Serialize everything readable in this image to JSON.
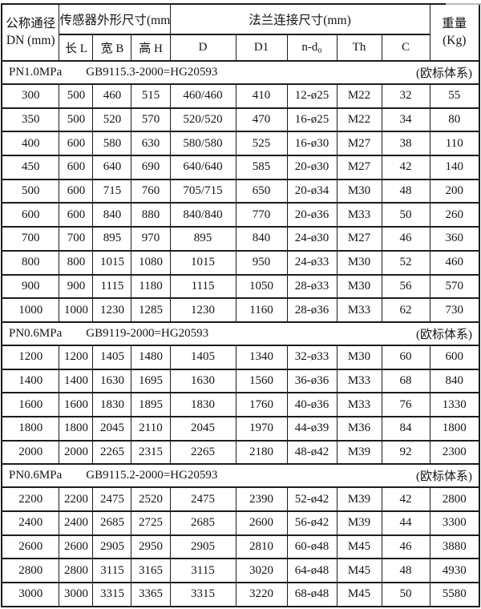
{
  "table": {
    "header": {
      "dn_line1": "公称通径",
      "dn_line2": "DN (mm)",
      "sensor_group": "传感器外形尺寸(mm)",
      "sensor_cols": [
        "长 L",
        "宽 B",
        "高 H"
      ],
      "flange_group": "法兰连接尺寸(mm)",
      "flange_cols": [
        "D",
        "D1",
        "n-d₀",
        "Th",
        "C"
      ],
      "weight_line1": "重量",
      "weight_line2": "(Kg)"
    },
    "sections": [
      {
        "pressure": "PN1.0MPa",
        "standard": "GB9115.3-2000=HG20593",
        "note": "(欧标体系)",
        "rows": [
          [
            "300",
            "500",
            "460",
            "515",
            "460/460",
            "410",
            "12-ø25",
            "M22",
            "32",
            "55"
          ],
          [
            "350",
            "500",
            "520",
            "570",
            "520/520",
            "470",
            "16-ø25",
            "M22",
            "34",
            "80"
          ],
          [
            "400",
            "600",
            "580",
            "630",
            "580/580",
            "525",
            "16-ø30",
            "M27",
            "38",
            "110"
          ],
          [
            "450",
            "600",
            "640",
            "690",
            "640/640",
            "585",
            "20-ø30",
            "M27",
            "42",
            "140"
          ],
          [
            "500",
            "600",
            "715",
            "760",
            "705/715",
            "650",
            "20-ø34",
            "M30",
            "48",
            "200"
          ],
          [
            "600",
            "600",
            "840",
            "880",
            "840/840",
            "770",
            "20-ø36",
            "M33",
            "50",
            "260"
          ],
          [
            "700",
            "700",
            "895",
            "970",
            "895",
            "840",
            "24-ø30",
            "M27",
            "46",
            "360"
          ],
          [
            "800",
            "800",
            "1015",
            "1080",
            "1015",
            "950",
            "24-ø33",
            "M30",
            "52",
            "460"
          ],
          [
            "900",
            "900",
            "1115",
            "1180",
            "1115",
            "1050",
            "28-ø33",
            "M30",
            "56",
            "570"
          ],
          [
            "1000",
            "1000",
            "1230",
            "1285",
            "1230",
            "1160",
            "28-ø36",
            "M33",
            "62",
            "730"
          ]
        ]
      },
      {
        "pressure": "PN0.6MPa",
        "standard": "GB9119-2000=HG20593",
        "note": "(欧标体系)",
        "rows": [
          [
            "1200",
            "1200",
            "1405",
            "1480",
            "1405",
            "1340",
            "32-ø33",
            "M30",
            "60",
            "600"
          ],
          [
            "1400",
            "1400",
            "1630",
            "1695",
            "1630",
            "1560",
            "36-ø36",
            "M33",
            "68",
            "840"
          ],
          [
            "1600",
            "1600",
            "1830",
            "1895",
            "1830",
            "1760",
            "40-ø36",
            "M33",
            "76",
            "1330"
          ],
          [
            "1800",
            "1800",
            "2045",
            "2110",
            "2045",
            "1970",
            "44-ø39",
            "M36",
            "84",
            "1800"
          ],
          [
            "2000",
            "2000",
            "2265",
            "2315",
            "2265",
            "2180",
            "48-ø42",
            "M39",
            "92",
            "2300"
          ]
        ]
      },
      {
        "pressure": "PN0.6MPa",
        "standard": "GB9115.2-2000=HG20593",
        "note": "(欧标体系)",
        "rows": [
          [
            "2200",
            "2200",
            "2475",
            "2520",
            "2475",
            "2390",
            "52-ø42",
            "M39",
            "42",
            "2800"
          ],
          [
            "2400",
            "2400",
            "2685",
            "2725",
            "2685",
            "2600",
            "56-ø42",
            "M39",
            "44",
            "3300"
          ],
          [
            "2600",
            "2600",
            "2905",
            "2950",
            "2905",
            "2810",
            "60-ø48",
            "M45",
            "46",
            "3880"
          ],
          [
            "2800",
            "2800",
            "3115",
            "3165",
            "3115",
            "3020",
            "64-ø48",
            "M45",
            "48",
            "4930"
          ],
          [
            "3000",
            "3000",
            "3315",
            "3365",
            "3315",
            "3220",
            "68-ø48",
            "M45",
            "50",
            "5580"
          ]
        ]
      }
    ]
  }
}
